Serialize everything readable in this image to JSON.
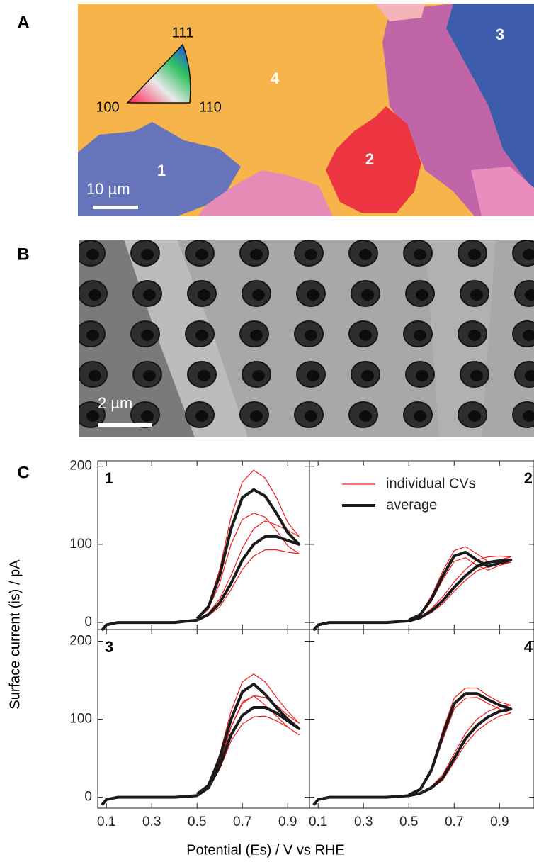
{
  "panels": {
    "A": {
      "label": "A",
      "triangle": [
        "111",
        "100",
        "110"
      ],
      "grains": [
        "4",
        "3",
        "2",
        "1"
      ],
      "scale": "10 µm"
    },
    "B": {
      "label": "B",
      "scale": "2 µm"
    },
    "C": {
      "label": "C",
      "ylabel": "Surface current (is) / pA",
      "xlabel": "Potential (Es) / V vs RHE"
    }
  },
  "chart_data": [
    {
      "type": "line",
      "title": "1",
      "xlim": [
        0.062,
        0.996
      ],
      "ylim": [
        -9,
        207
      ],
      "xticks": [
        0.1,
        0.3,
        0.5,
        0.7,
        0.9
      ],
      "yticks": [
        0,
        100,
        200
      ],
      "x": [
        0.08,
        0.1,
        0.15,
        0.2,
        0.3,
        0.4,
        0.5,
        0.55,
        0.6,
        0.65,
        0.7,
        0.75,
        0.8,
        0.85,
        0.9,
        0.95,
        0.9,
        0.85,
        0.8,
        0.75,
        0.7,
        0.65,
        0.6,
        0.55,
        0.5
      ],
      "series": [
        {
          "color": "#ee1c1c",
          "values": [
            -10,
            -3,
            0,
            0,
            0,
            0,
            3,
            12,
            30,
            60,
            95,
            120,
            130,
            125,
            118,
            110,
            128,
            160,
            185,
            195,
            180,
            135,
            68,
            22,
            6
          ]
        },
        {
          "color": "#ee1c1c",
          "values": [
            -10,
            -3,
            0,
            0,
            0,
            0,
            3,
            9,
            20,
            42,
            68,
            85,
            93,
            93,
            90,
            88,
            98,
            118,
            135,
            140,
            132,
            100,
            50,
            17,
            4
          ]
        },
        {
          "color": "#1a1a1a",
          "values": [
            -10,
            -3,
            0,
            0,
            0,
            0,
            3,
            10,
            25,
            50,
            80,
            100,
            110,
            110,
            105,
            100,
            115,
            140,
            162,
            170,
            160,
            120,
            60,
            20,
            5
          ]
        }
      ]
    },
    {
      "type": "line",
      "title": "2",
      "xlim": [
        0.062,
        1.052
      ],
      "ylim": [
        -9,
        207
      ],
      "xticks": [
        0.1,
        0.3,
        0.5,
        0.7,
        0.9
      ],
      "yticks": [
        0,
        100,
        200
      ],
      "x": [
        0.08,
        0.1,
        0.15,
        0.2,
        0.3,
        0.4,
        0.5,
        0.55,
        0.6,
        0.65,
        0.7,
        0.75,
        0.8,
        0.85,
        0.9,
        0.95,
        0.9,
        0.85,
        0.8,
        0.75,
        0.7,
        0.65,
        0.6,
        0.55,
        0.5
      ],
      "series": [
        {
          "name": "individual CVs",
          "color": "#ee1c1c",
          "values": [
            -10,
            -3,
            0,
            0,
            0,
            0,
            2,
            7,
            18,
            33,
            52,
            68,
            80,
            84,
            85,
            84,
            80,
            78,
            88,
            97,
            92,
            66,
            34,
            11,
            3
          ]
        },
        {
          "color": "#ee1c1c",
          "values": [
            -10,
            -3,
            0,
            0,
            0,
            0,
            2,
            5,
            13,
            24,
            40,
            54,
            66,
            72,
            75,
            77,
            73,
            67,
            73,
            83,
            78,
            55,
            27,
            9,
            2
          ]
        },
        {
          "name": "average",
          "color": "#1a1a1a",
          "values": [
            -10,
            -3,
            0,
            0,
            0,
            0,
            2,
            6,
            15,
            28,
            45,
            60,
            72,
            77,
            79,
            80,
            76,
            72,
            80,
            90,
            85,
            60,
            30,
            10,
            3
          ]
        }
      ]
    },
    {
      "type": "line",
      "title": "3",
      "xlim": [
        0.062,
        0.996
      ],
      "ylim": [
        -14,
        215
      ],
      "xticks": [
        0.1,
        0.3,
        0.5,
        0.7,
        0.9
      ],
      "yticks": [
        0,
        100,
        200
      ],
      "x": [
        0.08,
        0.1,
        0.15,
        0.2,
        0.3,
        0.4,
        0.5,
        0.55,
        0.6,
        0.65,
        0.7,
        0.75,
        0.8,
        0.85,
        0.9,
        0.95,
        0.9,
        0.85,
        0.8,
        0.75,
        0.7,
        0.65,
        0.6,
        0.55,
        0.5
      ],
      "series": [
        {
          "color": "#ee1c1c",
          "values": [
            -10,
            -3,
            0,
            0,
            0,
            0,
            2,
            13,
            44,
            90,
            120,
            130,
            128,
            118,
            105,
            95,
            110,
            128,
            148,
            158,
            148,
            110,
            55,
            16,
            4
          ]
        },
        {
          "color": "#ee1c1c",
          "values": [
            -10,
            -3,
            0,
            0,
            0,
            0,
            2,
            11,
            36,
            72,
            94,
            103,
            104,
            98,
            90,
            80,
            90,
            104,
            118,
            130,
            122,
            90,
            45,
            13,
            3
          ]
        },
        {
          "color": "#1a1a1a",
          "values": [
            -10,
            -3,
            0,
            0,
            0,
            0,
            2,
            12,
            40,
            80,
            105,
            115,
            115,
            108,
            98,
            88,
            100,
            115,
            132,
            145,
            135,
            100,
            50,
            15,
            4
          ]
        }
      ]
    },
    {
      "type": "line",
      "title": "4",
      "xlim": [
        0.062,
        1.052
      ],
      "ylim": [
        -14,
        215
      ],
      "xticks": [
        0.1,
        0.3,
        0.5,
        0.7,
        0.9
      ],
      "yticks": [
        0,
        100,
        200
      ],
      "x": [
        0.08,
        0.1,
        0.15,
        0.2,
        0.3,
        0.4,
        0.5,
        0.55,
        0.6,
        0.65,
        0.7,
        0.75,
        0.8,
        0.85,
        0.9,
        0.95,
        0.9,
        0.85,
        0.8,
        0.75,
        0.7,
        0.65,
        0.6,
        0.55,
        0.5
      ],
      "series": [
        {
          "color": "#ee1c1c",
          "values": [
            -10,
            -3,
            0,
            0,
            0,
            0,
            2,
            6,
            14,
            29,
            56,
            82,
            100,
            110,
            116,
            118,
            122,
            130,
            140,
            140,
            127,
            86,
            38,
            11,
            3
          ]
        },
        {
          "color": "#ee1c1c",
          "values": [
            -10,
            -3,
            0,
            0,
            0,
            0,
            2,
            5,
            11,
            22,
            45,
            68,
            85,
            96,
            104,
            108,
            113,
            120,
            128,
            127,
            113,
            74,
            32,
            9,
            3
          ]
        },
        {
          "color": "#1a1a1a",
          "values": [
            -10,
            -3,
            0,
            0,
            0,
            0,
            2,
            5,
            12,
            25,
            50,
            75,
            92,
            103,
            110,
            113,
            118,
            125,
            133,
            133,
            120,
            80,
            35,
            10,
            3
          ]
        }
      ]
    }
  ]
}
